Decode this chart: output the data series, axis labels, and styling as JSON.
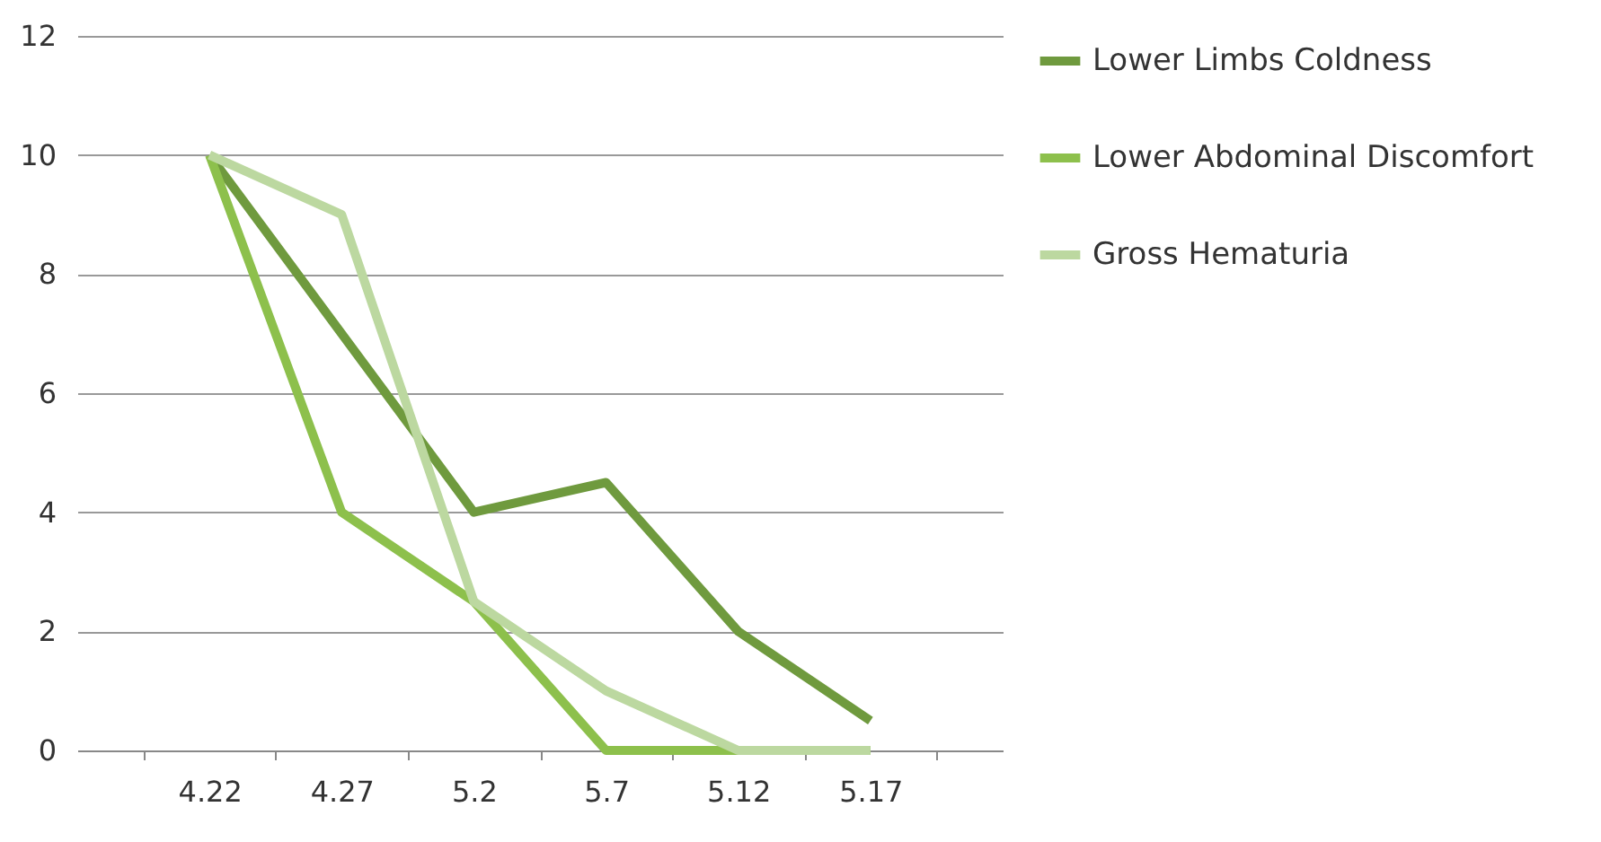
{
  "chart_data": {
    "type": "line",
    "categories": [
      "4.22",
      "4.27",
      "5.2",
      "5.7",
      "5.12",
      "5.17"
    ],
    "series": [
      {
        "name": "Lower Limbs Coldness",
        "color": "#6f9a3e",
        "values": [
          10,
          7,
          4,
          4.5,
          2,
          0.5
        ]
      },
      {
        "name": "Lower Abdominal Discomfort",
        "color": "#8dc04c",
        "values": [
          10,
          4,
          2.5,
          0,
          0,
          0
        ]
      },
      {
        "name": "Gross Hematuria",
        "color": "#bcd8a0",
        "values": [
          10,
          9,
          2.5,
          1,
          0,
          0
        ]
      }
    ],
    "ylim": [
      0,
      12
    ],
    "yticks": [
      0,
      2,
      4,
      6,
      8,
      10,
      12
    ],
    "grid": "y",
    "legend": "right",
    "marker": "none",
    "line_style": "solid"
  }
}
